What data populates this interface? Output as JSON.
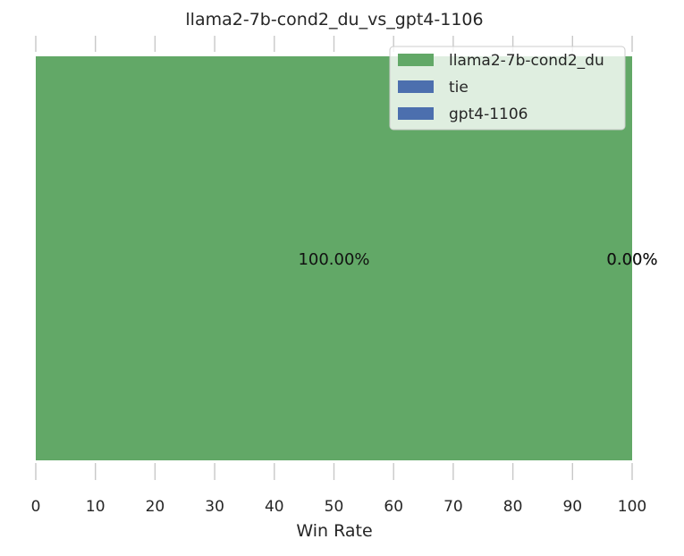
{
  "chart_data": {
    "type": "bar",
    "orientation": "horizontal",
    "stacked": true,
    "title": "llama2-7b-cond2_du_vs_gpt4-1106",
    "xlabel": "Win Rate",
    "ylabel": "",
    "xlim": [
      0,
      100
    ],
    "xticks": [
      0,
      10,
      20,
      30,
      40,
      50,
      60,
      70,
      80,
      90,
      100
    ],
    "grid": true,
    "legend_position": "top-right",
    "series": [
      {
        "name": "llama2-7b-cond2_du",
        "value": 100.0,
        "label": "100.00%",
        "color": "#62a867"
      },
      {
        "name": "tie",
        "value": 0.0,
        "label": "0.00%",
        "color": "#4c6fae"
      },
      {
        "name": "gpt4-1106",
        "value": 0.0,
        "label": "0.00%",
        "color": "#4c6fae"
      }
    ]
  }
}
